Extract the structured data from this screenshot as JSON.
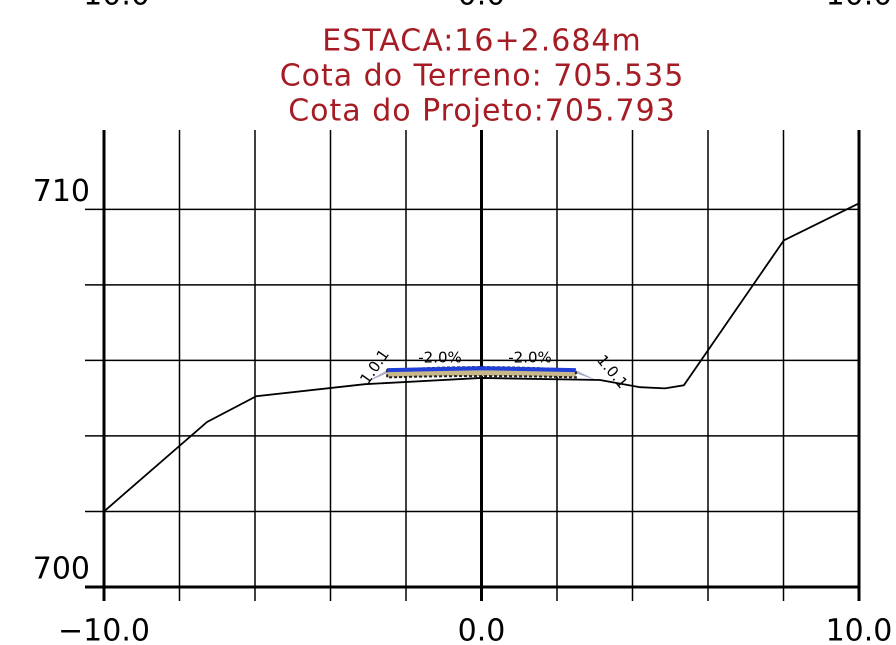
{
  "chart_data": {
    "type": "line",
    "title": "ESTACA:16+2.684m",
    "subtitle": [
      "Cota do Terreno: 705.535",
      "Cota do Projeto:705.793"
    ],
    "xlim": [
      -10,
      10
    ],
    "ylim": [
      700,
      712.1
    ],
    "xticks": [
      {
        "value": -10,
        "label": "−10.0"
      },
      {
        "value": 0,
        "label": "0.0"
      },
      {
        "value": 10,
        "label": "10.0"
      }
    ],
    "yticks": [
      700,
      710
    ],
    "xminor": [
      -8,
      -6,
      -4,
      -2,
      2,
      4,
      6,
      8
    ],
    "yminor": [
      702,
      704,
      706,
      708
    ],
    "grid": true,
    "series": [
      {
        "color": "#000000",
        "x": [
          -10,
          -7.27,
          -5.97,
          -3.09,
          0,
          3.14,
          4.2,
          4.86,
          5.36,
          8.01,
          10
        ],
        "values": [
          702,
          704.37,
          705.05,
          705.37,
          705.535,
          705.48,
          705.29,
          705.26,
          705.34,
          709.18,
          710.16
        ]
      },
      {
        "color": "#1f3fd8",
        "x": [
          -2.5,
          0,
          2.5
        ],
        "values": [
          705.743,
          705.793,
          705.743
        ]
      }
    ],
    "annotations": [
      "1.0.1",
      "-2.0%",
      "-2.0%",
      "1.0.1"
    ]
  }
}
